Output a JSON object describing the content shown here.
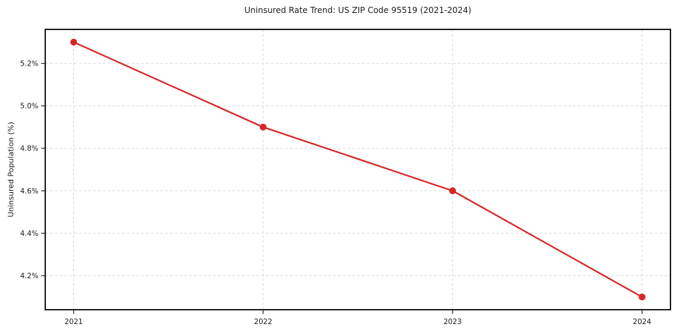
{
  "chart_data": {
    "type": "line",
    "title": "Uninsured Rate Trend: US ZIP Code 95519 (2021-2024)",
    "xlabel": "",
    "ylabel": "Uninsured Population (%)",
    "x": [
      2021,
      2022,
      2023,
      2024
    ],
    "x_tick_labels": [
      "2021",
      "2022",
      "2023",
      "2024"
    ],
    "series": [
      {
        "name": "uninsured_population_pct",
        "values": [
          5.3,
          4.9,
          4.6,
          4.1
        ],
        "color": "#d62728",
        "marker": "circle"
      }
    ],
    "y_ticks": [
      {
        "value": 4.2,
        "label": "4.2%"
      },
      {
        "value": 4.4,
        "label": "4.4%"
      },
      {
        "value": 4.6,
        "label": "4.6%"
      },
      {
        "value": 4.8,
        "label": "4.8%"
      },
      {
        "value": 5.0,
        "label": "5.0%"
      },
      {
        "value": 5.2,
        "label": "5.2%"
      }
    ],
    "xlim": [
      2020.85,
      2024.15
    ],
    "ylim": [
      4.04,
      5.36
    ],
    "grid": true,
    "grid_style": "dashed",
    "legend": "none",
    "colors": {
      "line": "#d62728",
      "grid": "#d9d9d9",
      "axis": "#000000",
      "text": "#1a1a1a",
      "background": "#ffffff"
    }
  }
}
